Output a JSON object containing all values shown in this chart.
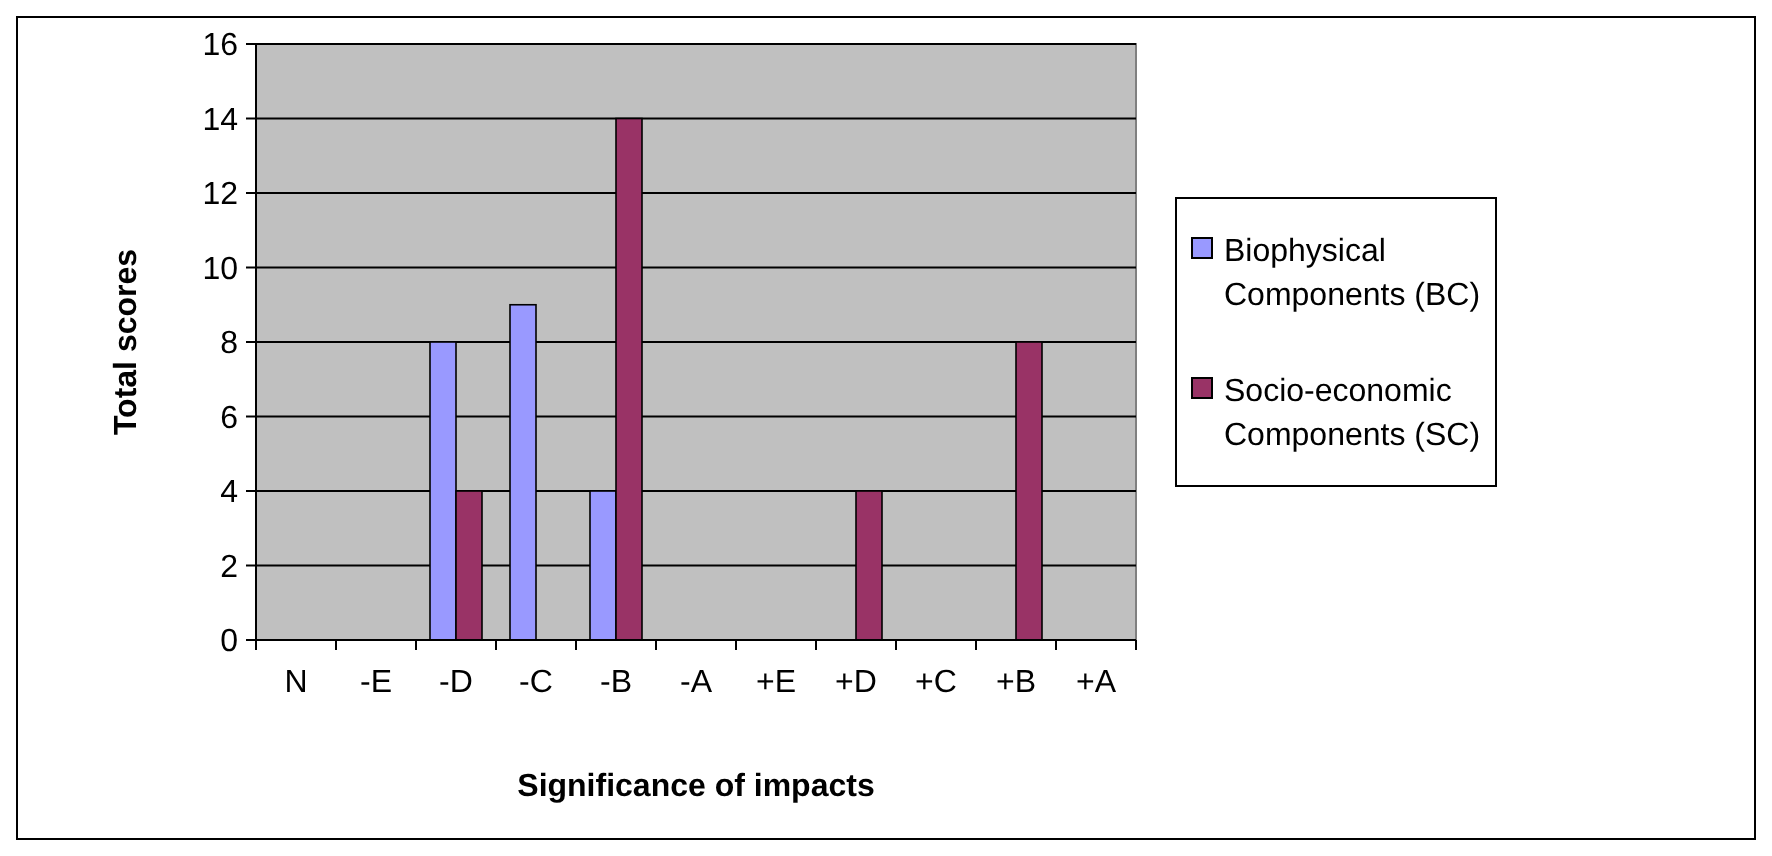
{
  "chart_data": {
    "type": "bar",
    "xlabel": "Significance of impacts",
    "ylabel": "Total scores",
    "categories": [
      "N",
      "-E",
      "-D",
      "-C",
      "-B",
      "-A",
      "+E",
      "+D",
      "+C",
      "+B",
      "+A"
    ],
    "series": [
      {
        "name": "Biophysical Components (BC)",
        "color": "#9999ff",
        "values": [
          0,
          0,
          8,
          9,
          4,
          0,
          0,
          0,
          0,
          0,
          0
        ]
      },
      {
        "name": "Socio-economic Components (SC)",
        "color": "#993366",
        "values": [
          0,
          0,
          4,
          0,
          14,
          0,
          0,
          4,
          0,
          8,
          0
        ]
      }
    ],
    "ylim": [
      0,
      16
    ],
    "yticks": [
      0,
      2,
      4,
      6,
      8,
      10,
      12,
      14,
      16
    ],
    "grid": "y",
    "legend": "right"
  }
}
